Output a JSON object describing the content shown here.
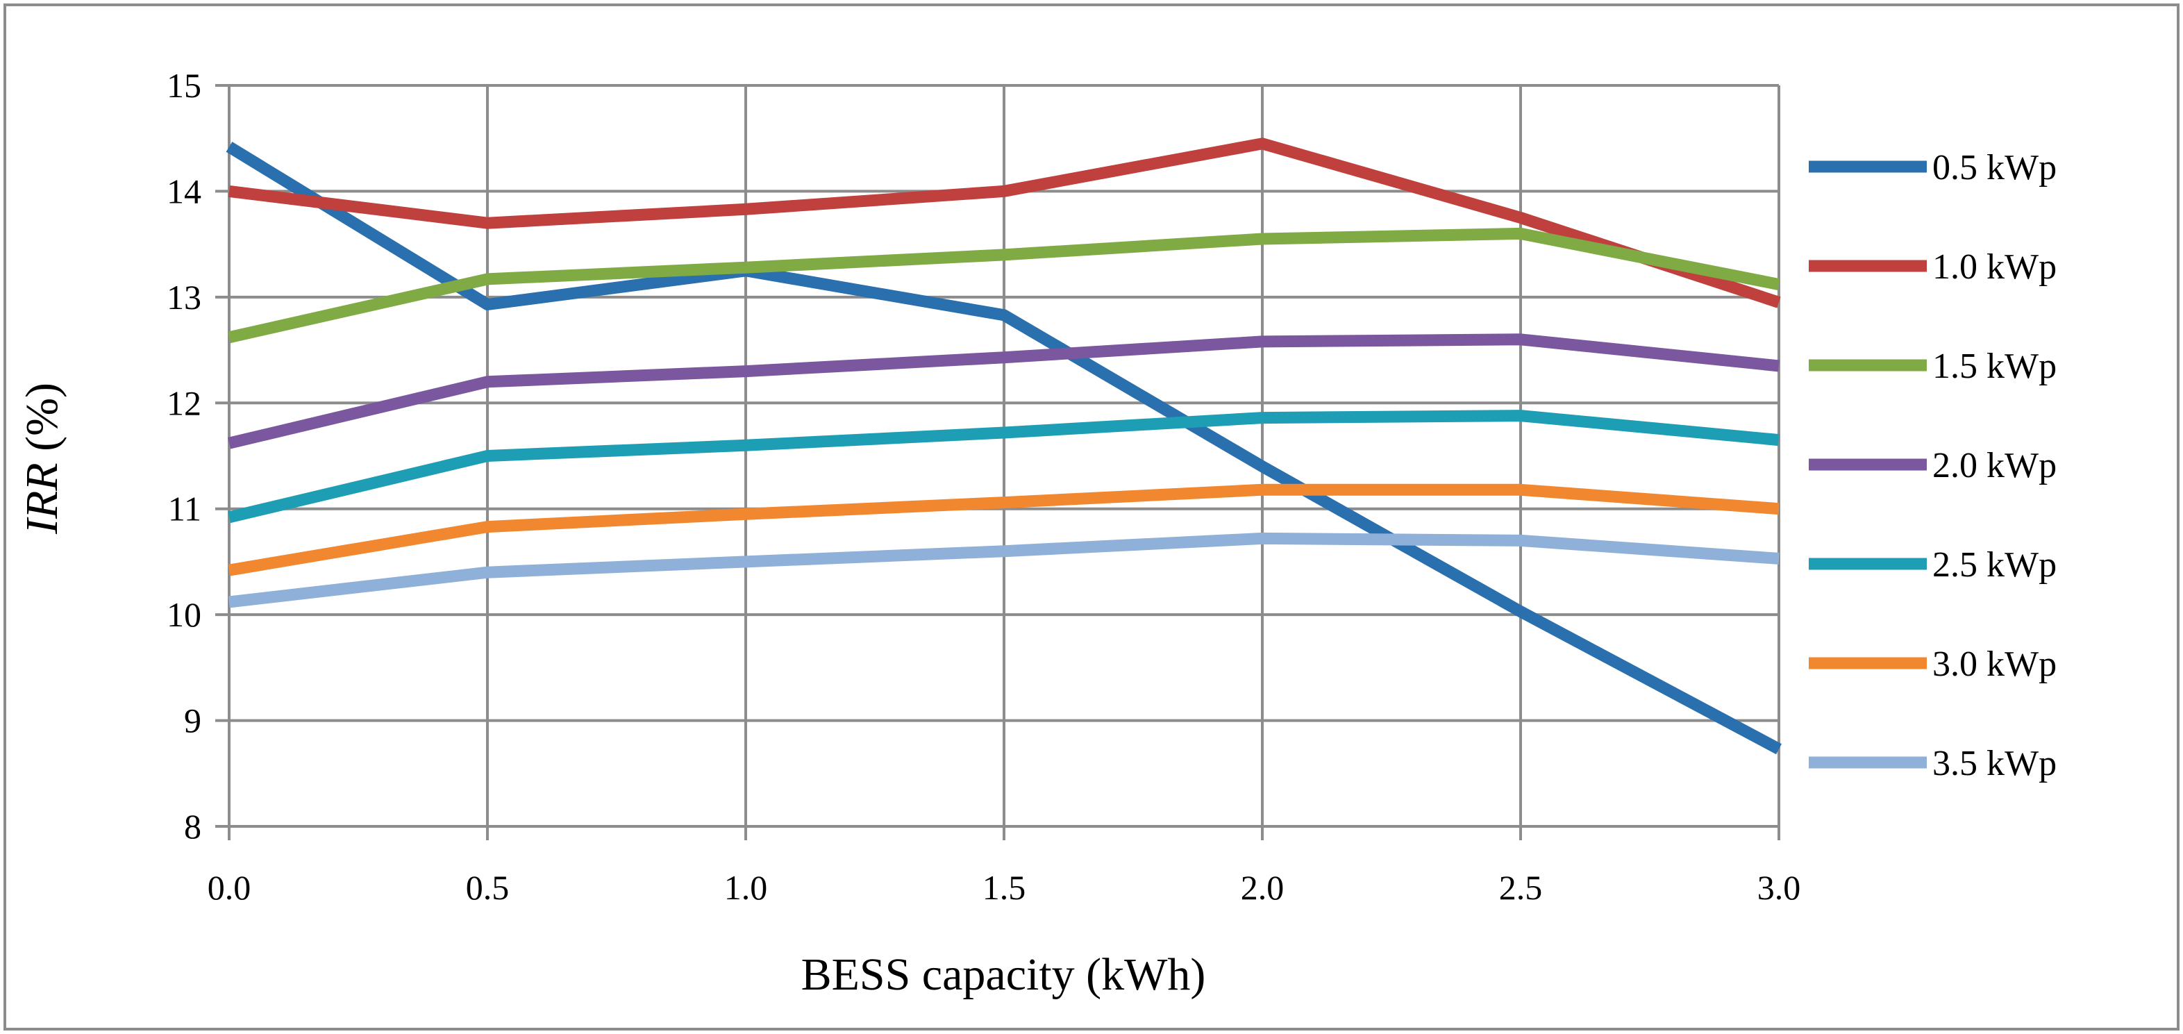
{
  "chart_data": {
    "type": "line",
    "title": "",
    "xlabel": "BESS capacity (kWh)",
    "ylabel_italic": "IRR",
    "ylabel_rest": " (%)",
    "x": [
      0.0,
      0.5,
      1.0,
      1.5,
      2.0,
      2.5,
      3.0
    ],
    "x_tick_labels": [
      "0.0",
      "0.5",
      "1.0",
      "1.5",
      "2.0",
      "2.5",
      "3.0"
    ],
    "y_ticks": [
      8,
      9,
      10,
      11,
      12,
      13,
      14,
      15
    ],
    "y_tick_labels": [
      "8",
      "9",
      "10",
      "11",
      "12",
      "13",
      "14",
      "15"
    ],
    "xlim": [
      0.0,
      3.0
    ],
    "ylim": [
      8,
      15
    ],
    "grid": true,
    "legend_position": "right",
    "series": [
      {
        "name": "0.5 kWp",
        "color": "#2A6FAE",
        "values": [
          14.42,
          12.93,
          13.25,
          12.83,
          11.4,
          10.03,
          8.73
        ]
      },
      {
        "name": "1.0 kWp",
        "color": "#C0403D",
        "values": [
          14.0,
          13.7,
          13.83,
          14.0,
          14.45,
          13.75,
          12.95
        ]
      },
      {
        "name": "1.5 kWp",
        "color": "#7FAA44",
        "values": [
          12.62,
          13.17,
          13.28,
          13.4,
          13.55,
          13.6,
          13.12
        ]
      },
      {
        "name": "2.0 kWp",
        "color": "#7A579E",
        "values": [
          11.62,
          12.2,
          12.3,
          12.43,
          12.58,
          12.6,
          12.35
        ]
      },
      {
        "name": "2.5 kWp",
        "color": "#1E9EB5",
        "values": [
          10.92,
          11.5,
          11.6,
          11.72,
          11.86,
          11.88,
          11.65
        ]
      },
      {
        "name": "3.0 kWp",
        "color": "#F1872F",
        "values": [
          10.42,
          10.83,
          10.95,
          11.06,
          11.18,
          11.18,
          11.0
        ]
      },
      {
        "name": "3.5 kWp",
        "color": "#8FB0D8",
        "values": [
          10.12,
          10.4,
          10.5,
          10.6,
          10.72,
          10.7,
          10.53
        ]
      }
    ]
  }
}
